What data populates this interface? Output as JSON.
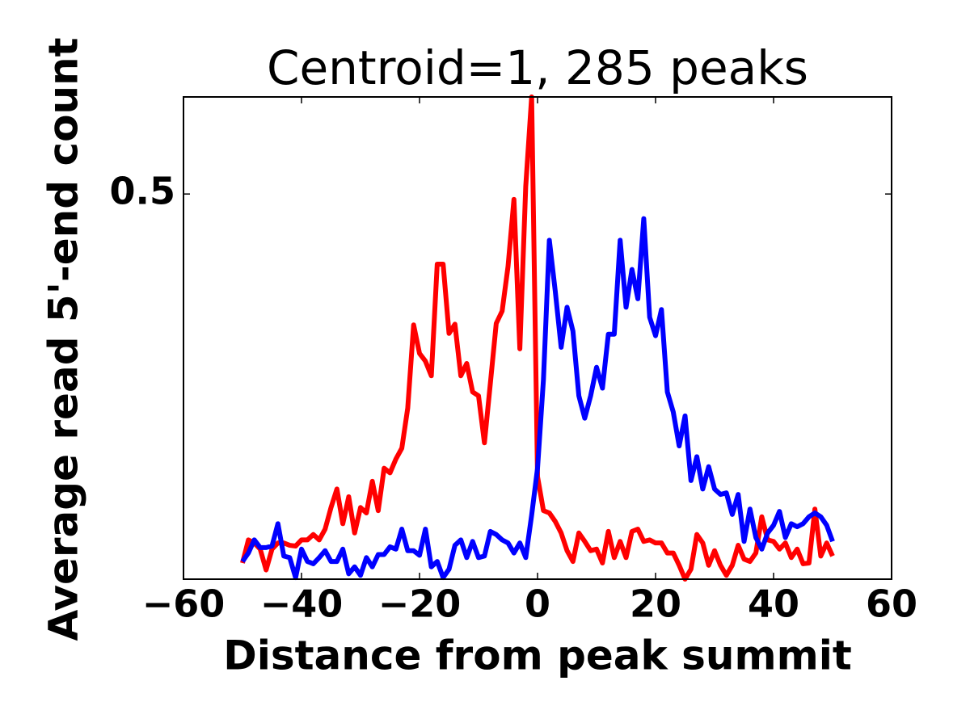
{
  "chart_data": {
    "type": "line",
    "title": "Centroid=1, 285 peaks",
    "xlabel": "Distance from peak summit",
    "ylabel": "Average read 5'-end count",
    "x": [
      -50,
      -49,
      -48,
      -47,
      -46,
      -45,
      -44,
      -43,
      -42,
      -41,
      -40,
      -39,
      -38,
      -37,
      -36,
      -35,
      -34,
      -33,
      -32,
      -31,
      -30,
      -29,
      -28,
      -27,
      -26,
      -25,
      -24,
      -23,
      -22,
      -21,
      -20,
      -19,
      -18,
      -17,
      -16,
      -15,
      -14,
      -13,
      -12,
      -11,
      -10,
      -9,
      -8,
      -7,
      -6,
      -5,
      -4,
      -3,
      -2,
      -1,
      0,
      1,
      2,
      3,
      4,
      5,
      6,
      7,
      8,
      9,
      10,
      11,
      12,
      13,
      14,
      15,
      16,
      17,
      18,
      19,
      20,
      21,
      22,
      23,
      24,
      25,
      26,
      27,
      28,
      29,
      30,
      31,
      32,
      33,
      34,
      35,
      36,
      37,
      38,
      39,
      40,
      41,
      42,
      43,
      44,
      45,
      46,
      47,
      48,
      49,
      50
    ],
    "series": [
      {
        "color": "#ff0000",
        "values": [
          0.021,
          0.051,
          0.047,
          0.039,
          0.012,
          0.039,
          0.047,
          0.047,
          0.044,
          0.043,
          0.051,
          0.051,
          0.058,
          0.051,
          0.065,
          0.093,
          0.117,
          0.072,
          0.107,
          0.06,
          0.093,
          0.086,
          0.127,
          0.089,
          0.144,
          0.138,
          0.156,
          0.17,
          0.222,
          0.33,
          0.293,
          0.283,
          0.264,
          0.409,
          0.409,
          0.319,
          0.331,
          0.264,
          0.28,
          0.243,
          0.238,
          0.177,
          0.254,
          0.332,
          0.348,
          0.406,
          0.493,
          0.299,
          0.51,
          0.626,
          0.133,
          0.089,
          0.086,
          0.075,
          0.06,
          0.037,
          0.023,
          0.06,
          0.049,
          0.037,
          0.039,
          0.021,
          0.062,
          0.028,
          0.049,
          0.028,
          0.062,
          0.065,
          0.049,
          0.051,
          0.047,
          0.047,
          0.034,
          0.034,
          0.018,
          0,
          0.013,
          0.058,
          0.047,
          0.018,
          0.037,
          0.018,
          0.005,
          0.018,
          0.044,
          0.026,
          0.023,
          0.034,
          0.081,
          0.051,
          0.049,
          0.039,
          0.047,
          0.028,
          0.039,
          0.02,
          0.021,
          0.091,
          0.03,
          0.047,
          0.03
        ]
      },
      {
        "color": "#0000ff",
        "values": [
          0.023,
          0.034,
          0.051,
          0.041,
          0.041,
          0.043,
          0.072,
          0.03,
          0.028,
          0.002,
          0.039,
          0.023,
          0.02,
          0.028,
          0.037,
          0.023,
          0.023,
          0.039,
          0.007,
          0.016,
          0.005,
          0.028,
          0.016,
          0.032,
          0.032,
          0.042,
          0.039,
          0.065,
          0.037,
          0.037,
          0.031,
          0.065,
          0.016,
          0.023,
          0.002,
          0.013,
          0.044,
          0.051,
          0.028,
          0.049,
          0.028,
          0.03,
          0.062,
          0.058,
          0.051,
          0.047,
          0.034,
          0.047,
          0.028,
          0.083,
          0.144,
          0.259,
          0.44,
          0.374,
          0.301,
          0.353,
          0.322,
          0.238,
          0.209,
          0.238,
          0.275,
          0.248,
          0.318,
          0.318,
          0.44,
          0.353,
          0.402,
          0.364,
          0.468,
          0.34,
          0.316,
          0.35,
          0.243,
          0.217,
          0.173,
          0.212,
          0.128,
          0.159,
          0.117,
          0.146,
          0.117,
          0.11,
          0.112,
          0.084,
          0.11,
          0.049,
          0.091,
          0.054,
          0.039,
          0.06,
          0.07,
          0.088,
          0.054,
          0.072,
          0.068,
          0.072,
          0.081,
          0.086,
          0.081,
          0.07,
          0.049
        ]
      }
    ],
    "xlim": [
      -60,
      60
    ],
    "xticks": [
      {
        "value": -60,
        "label": "−60"
      },
      {
        "value": -40,
        "label": "−40"
      },
      {
        "value": -20,
        "label": "−20"
      },
      0,
      20,
      40,
      60
    ],
    "ylim": [
      0,
      0.626
    ],
    "yticks": [
      0.5
    ]
  }
}
